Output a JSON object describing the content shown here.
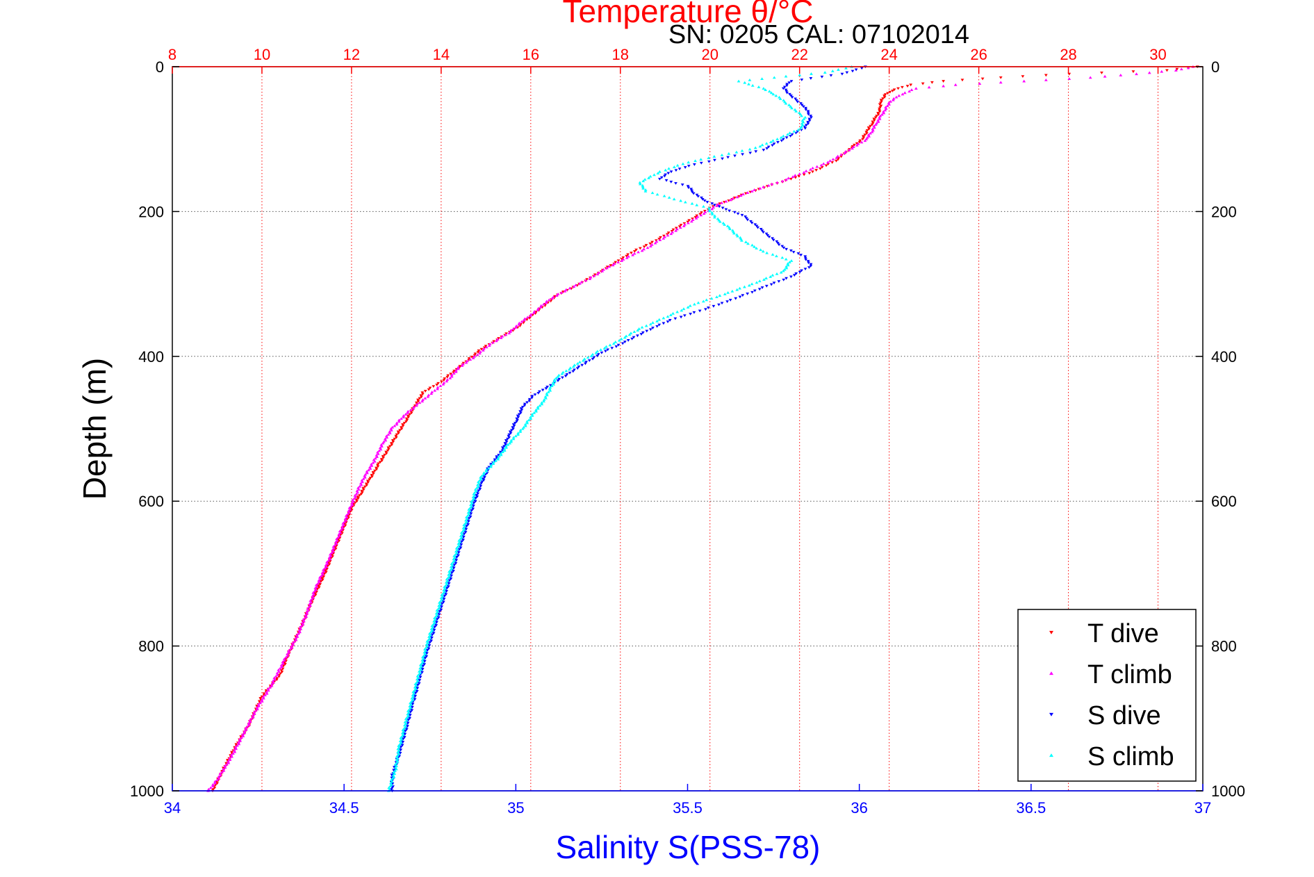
{
  "chart_data": {
    "type": "scatter",
    "title": "Temperature θ/°C",
    "subtitle": "SN: 0205  CAL: 07102014",
    "ylabel": "Depth (m)",
    "xlabel_bottom": "Salinity S(PSS-78)",
    "xlabel_top": "Temperature θ/°C",
    "y_axis": {
      "min": 0,
      "max": 1000,
      "reversed": true,
      "ticks": [
        "0",
        "200",
        "400",
        "600",
        "800",
        "1000"
      ]
    },
    "x_bottom_axis": {
      "min": 34,
      "max": 37,
      "ticks": [
        "34",
        "34.5",
        "35",
        "35.5",
        "36",
        "36.5",
        "37"
      ]
    },
    "x_top_axis": {
      "min": 8,
      "max": 31,
      "ticks": [
        "8",
        "10",
        "12",
        "14",
        "16",
        "18",
        "20",
        "22",
        "24",
        "26",
        "28",
        "30"
      ]
    },
    "grid": true,
    "legend_position": "bottom-right",
    "colors": {
      "T dive": "#ff0000",
      "T climb": "#ff00ff",
      "S dive": "#0000ff",
      "S climb": "#00ffff",
      "top_axis": "#ff0000",
      "bottom_axis": "#0000ff",
      "left_axis": "#000000"
    },
    "series": [
      {
        "name": "T dive",
        "axis": "temperature",
        "marker": "triangle-down",
        "points": [
          [
            30.9,
            0
          ],
          [
            30.2,
            5
          ],
          [
            28,
            10
          ],
          [
            26.5,
            15
          ],
          [
            25.2,
            20
          ],
          [
            24.5,
            25
          ],
          [
            24.2,
            30
          ],
          [
            24,
            35
          ],
          [
            23.9,
            40
          ],
          [
            23.8,
            50
          ],
          [
            23.8,
            60
          ],
          [
            23.7,
            70
          ],
          [
            23.6,
            80
          ],
          [
            23.5,
            90
          ],
          [
            23.4,
            100
          ],
          [
            23.2,
            110
          ],
          [
            23.0,
            120
          ],
          [
            22.8,
            130
          ],
          [
            22.3,
            145
          ],
          [
            21.8,
            155
          ],
          [
            21.3,
            165
          ],
          [
            20.8,
            175
          ],
          [
            20.4,
            185
          ],
          [
            20.0,
            195
          ],
          [
            19.6,
            210
          ],
          [
            19.2,
            225
          ],
          [
            18.8,
            240
          ],
          [
            18.3,
            255
          ],
          [
            17.9,
            270
          ],
          [
            17.5,
            285
          ],
          [
            17.1,
            300
          ],
          [
            16.6,
            315
          ],
          [
            16.3,
            330
          ],
          [
            16.0,
            345
          ],
          [
            15.7,
            360
          ],
          [
            15.3,
            375
          ],
          [
            14.9,
            390
          ],
          [
            14.6,
            405
          ],
          [
            14.3,
            420
          ],
          [
            14.0,
            435
          ],
          [
            13.6,
            450
          ],
          [
            13.4,
            470
          ],
          [
            13.2,
            490
          ],
          [
            13.0,
            510
          ],
          [
            12.8,
            530
          ],
          [
            12.6,
            550
          ],
          [
            12.4,
            570
          ],
          [
            12.2,
            590
          ],
          [
            12.0,
            610
          ],
          [
            11.8,
            640
          ],
          [
            11.6,
            670
          ],
          [
            11.4,
            700
          ],
          [
            11.1,
            740
          ],
          [
            10.9,
            770
          ],
          [
            10.6,
            810
          ],
          [
            10.4,
            840
          ],
          [
            10.0,
            870
          ],
          [
            9.7,
            910
          ],
          [
            9.4,
            940
          ],
          [
            9.1,
            975
          ],
          [
            8.9,
            1000
          ]
        ]
      },
      {
        "name": "T climb",
        "axis": "temperature",
        "marker": "triangle-up",
        "points": [
          [
            30.8,
            0
          ],
          [
            30.4,
            5
          ],
          [
            29.5,
            10
          ],
          [
            28.5,
            15
          ],
          [
            27,
            20
          ],
          [
            25.5,
            25
          ],
          [
            24.6,
            30
          ],
          [
            24.2,
            40
          ],
          [
            24.0,
            50
          ],
          [
            23.9,
            60
          ],
          [
            23.8,
            70
          ],
          [
            23.7,
            80
          ],
          [
            23.6,
            90
          ],
          [
            23.5,
            100
          ],
          [
            23.1,
            115
          ],
          [
            22.7,
            130
          ],
          [
            22.0,
            148
          ],
          [
            21.6,
            158
          ],
          [
            21.0,
            170
          ],
          [
            20.6,
            180
          ],
          [
            20.2,
            190
          ],
          [
            19.8,
            205
          ],
          [
            19.4,
            220
          ],
          [
            19.0,
            235
          ],
          [
            18.6,
            250
          ],
          [
            18.2,
            262
          ],
          [
            17.7,
            278
          ],
          [
            17.3,
            293
          ],
          [
            16.8,
            308
          ],
          [
            16.4,
            322
          ],
          [
            16.1,
            338
          ],
          [
            15.8,
            352
          ],
          [
            15.5,
            368
          ],
          [
            15.1,
            383
          ],
          [
            14.8,
            398
          ],
          [
            14.4,
            415
          ],
          [
            14.2,
            430
          ],
          [
            13.9,
            445
          ],
          [
            13.6,
            460
          ],
          [
            13.2,
            480
          ],
          [
            12.9,
            500
          ],
          [
            12.7,
            520
          ],
          [
            12.5,
            545
          ],
          [
            12.3,
            565
          ],
          [
            12.1,
            590
          ],
          [
            11.9,
            620
          ],
          [
            11.7,
            650
          ],
          [
            11.5,
            680
          ],
          [
            11.2,
            720
          ],
          [
            11.0,
            755
          ],
          [
            10.8,
            785
          ],
          [
            10.5,
            820
          ],
          [
            10.2,
            855
          ],
          [
            9.9,
            885
          ],
          [
            9.6,
            920
          ],
          [
            9.3,
            955
          ],
          [
            9.0,
            985
          ],
          [
            8.8,
            1000
          ]
        ]
      },
      {
        "name": "S dive",
        "axis": "salinity",
        "marker": "triangle-down",
        "points": [
          [
            36.02,
            0
          ],
          [
            35.95,
            10
          ],
          [
            35.8,
            20
          ],
          [
            35.78,
            30
          ],
          [
            35.8,
            40
          ],
          [
            35.84,
            55
          ],
          [
            35.86,
            70
          ],
          [
            35.84,
            85
          ],
          [
            35.78,
            100
          ],
          [
            35.72,
            115
          ],
          [
            35.62,
            125
          ],
          [
            35.52,
            135
          ],
          [
            35.45,
            145
          ],
          [
            35.42,
            155
          ],
          [
            35.5,
            165
          ],
          [
            35.52,
            175
          ],
          [
            35.55,
            185
          ],
          [
            35.6,
            195
          ],
          [
            35.66,
            205
          ],
          [
            35.7,
            220
          ],
          [
            35.74,
            235
          ],
          [
            35.78,
            250
          ],
          [
            35.84,
            262
          ],
          [
            35.86,
            275
          ],
          [
            35.8,
            290
          ],
          [
            35.72,
            305
          ],
          [
            35.64,
            320
          ],
          [
            35.55,
            335
          ],
          [
            35.45,
            350
          ],
          [
            35.38,
            365
          ],
          [
            35.32,
            380
          ],
          [
            35.25,
            395
          ],
          [
            35.2,
            410
          ],
          [
            35.15,
            425
          ],
          [
            35.1,
            440
          ],
          [
            35.05,
            455
          ],
          [
            35.02,
            470
          ],
          [
            35.0,
            490
          ],
          [
            34.98,
            510
          ],
          [
            34.96,
            530
          ],
          [
            34.92,
            555
          ],
          [
            34.9,
            575
          ],
          [
            34.88,
            600
          ],
          [
            34.86,
            630
          ],
          [
            34.84,
            660
          ],
          [
            34.82,
            690
          ],
          [
            34.8,
            720
          ],
          [
            34.78,
            750
          ],
          [
            34.76,
            780
          ],
          [
            34.74,
            810
          ],
          [
            34.72,
            845
          ],
          [
            34.7,
            880
          ],
          [
            34.68,
            915
          ],
          [
            34.66,
            950
          ],
          [
            34.64,
            980
          ],
          [
            34.64,
            1000
          ]
        ]
      },
      {
        "name": "S climb",
        "axis": "salinity",
        "marker": "triangle-up",
        "points": [
          [
            35.98,
            0
          ],
          [
            35.9,
            8
          ],
          [
            35.75,
            15
          ],
          [
            35.65,
            20
          ],
          [
            35.72,
            30
          ],
          [
            35.76,
            40
          ],
          [
            35.8,
            55
          ],
          [
            35.84,
            70
          ],
          [
            35.83,
            85
          ],
          [
            35.76,
            100
          ],
          [
            35.7,
            112
          ],
          [
            35.6,
            122
          ],
          [
            35.5,
            132
          ],
          [
            35.42,
            145
          ],
          [
            35.36,
            160
          ],
          [
            35.38,
            172
          ],
          [
            35.48,
            185
          ],
          [
            35.56,
            195
          ],
          [
            35.58,
            208
          ],
          [
            35.62,
            222
          ],
          [
            35.66,
            240
          ],
          [
            35.72,
            255
          ],
          [
            35.8,
            268
          ],
          [
            35.78,
            282
          ],
          [
            35.7,
            298
          ],
          [
            35.62,
            312
          ],
          [
            35.52,
            328
          ],
          [
            35.44,
            345
          ],
          [
            35.36,
            362
          ],
          [
            35.3,
            378
          ],
          [
            35.24,
            393
          ],
          [
            35.18,
            410
          ],
          [
            35.12,
            428
          ],
          [
            35.1,
            445
          ],
          [
            35.08,
            462
          ],
          [
            35.05,
            480
          ],
          [
            35.02,
            500
          ],
          [
            34.98,
            520
          ],
          [
            34.95,
            540
          ],
          [
            34.9,
            565
          ],
          [
            34.88,
            590
          ],
          [
            34.86,
            620
          ],
          [
            34.84,
            650
          ],
          [
            34.82,
            680
          ],
          [
            34.8,
            710
          ],
          [
            34.78,
            740
          ],
          [
            34.76,
            770
          ],
          [
            34.74,
            800
          ],
          [
            34.72,
            835
          ],
          [
            34.7,
            870
          ],
          [
            34.68,
            905
          ],
          [
            34.66,
            940
          ],
          [
            34.65,
            970
          ],
          [
            34.63,
            1000
          ]
        ]
      }
    ]
  }
}
